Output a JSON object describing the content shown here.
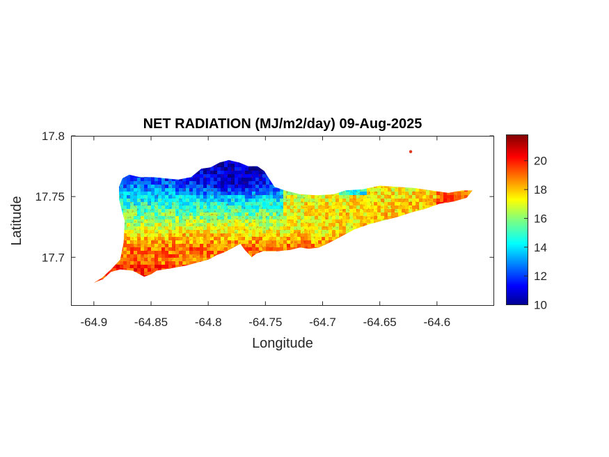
{
  "chart_data": {
    "type": "heatmap",
    "title": "NET RADIATION (MJ/m2/day) 09-Aug-2025",
    "xlabel": "Longitude",
    "ylabel": "Latitude",
    "xlim": [
      -64.92,
      -64.55
    ],
    "ylim": [
      17.66,
      17.8
    ],
    "xticks": [
      -64.9,
      -64.85,
      -64.8,
      -64.75,
      -64.7,
      -64.65,
      -64.6
    ],
    "xtick_labels": [
      "-64.9",
      "-64.85",
      "-64.8",
      "-64.75",
      "-64.7",
      "-64.65",
      "-64.6"
    ],
    "yticks": [
      17.7,
      17.75,
      17.8
    ],
    "ytick_labels": [
      "17.7",
      "17.75",
      "17.8"
    ],
    "colorbar": {
      "min": 10,
      "max": 21.8,
      "colormap": "jet",
      "ticks": [
        10,
        12,
        14,
        16,
        18,
        20
      ],
      "tick_labels": [
        "10",
        "12",
        "14",
        "16",
        "18",
        "20"
      ]
    },
    "region": {
      "outline": [
        [
          -64.9,
          17.679
        ],
        [
          -64.893,
          17.683
        ],
        [
          -64.885,
          17.69
        ],
        [
          -64.877,
          17.698
        ],
        [
          -64.874,
          17.712
        ],
        [
          -64.873,
          17.73
        ],
        [
          -64.876,
          17.74
        ],
        [
          -64.878,
          17.748
        ],
        [
          -64.878,
          17.758
        ],
        [
          -64.875,
          17.765
        ],
        [
          -64.869,
          17.768
        ],
        [
          -64.86,
          17.766
        ],
        [
          -64.848,
          17.766
        ],
        [
          -64.838,
          17.765
        ],
        [
          -64.826,
          17.764
        ],
        [
          -64.815,
          17.766
        ],
        [
          -64.806,
          17.773
        ],
        [
          -64.798,
          17.774
        ],
        [
          -64.79,
          17.778
        ],
        [
          -64.782,
          17.78
        ],
        [
          -64.773,
          17.778
        ],
        [
          -64.765,
          17.775
        ],
        [
          -64.757,
          17.775
        ],
        [
          -64.751,
          17.771
        ],
        [
          -64.747,
          17.765
        ],
        [
          -64.742,
          17.758
        ],
        [
          -64.733,
          17.755
        ],
        [
          -64.72,
          17.752
        ],
        [
          -64.705,
          17.751
        ],
        [
          -64.69,
          17.752
        ],
        [
          -64.68,
          17.755
        ],
        [
          -64.665,
          17.756
        ],
        [
          -64.65,
          17.759
        ],
        [
          -64.635,
          17.758
        ],
        [
          -64.62,
          17.757
        ],
        [
          -64.605,
          17.755
        ],
        [
          -64.59,
          17.753
        ],
        [
          -64.578,
          17.755
        ],
        [
          -64.569,
          17.755
        ],
        [
          -64.574,
          17.749
        ],
        [
          -64.585,
          17.746
        ],
        [
          -64.598,
          17.744
        ],
        [
          -64.61,
          17.74
        ],
        [
          -64.622,
          17.737
        ],
        [
          -64.635,
          17.733
        ],
        [
          -64.648,
          17.73
        ],
        [
          -64.66,
          17.727
        ],
        [
          -64.672,
          17.723
        ],
        [
          -64.684,
          17.717
        ],
        [
          -64.694,
          17.712
        ],
        [
          -64.703,
          17.708
        ],
        [
          -64.712,
          17.707
        ],
        [
          -64.72,
          17.708
        ],
        [
          -64.728,
          17.706
        ],
        [
          -64.74,
          17.705
        ],
        [
          -64.752,
          17.705
        ],
        [
          -64.758,
          17.703
        ],
        [
          -64.762,
          17.7
        ],
        [
          -64.768,
          17.706
        ],
        [
          -64.772,
          17.711
        ],
        [
          -64.78,
          17.707
        ],
        [
          -64.786,
          17.704
        ],
        [
          -64.792,
          17.702
        ],
        [
          -64.8,
          17.698
        ],
        [
          -64.808,
          17.696
        ],
        [
          -64.82,
          17.693
        ],
        [
          -64.832,
          17.691
        ],
        [
          -64.845,
          17.689
        ],
        [
          -64.85,
          17.686
        ],
        [
          -64.856,
          17.684
        ],
        [
          -64.866,
          17.689
        ],
        [
          -64.877,
          17.69
        ],
        [
          -64.885,
          17.688
        ],
        [
          -64.892,
          17.682
        ]
      ],
      "islet": [
        -64.623,
        17.787
      ]
    }
  }
}
